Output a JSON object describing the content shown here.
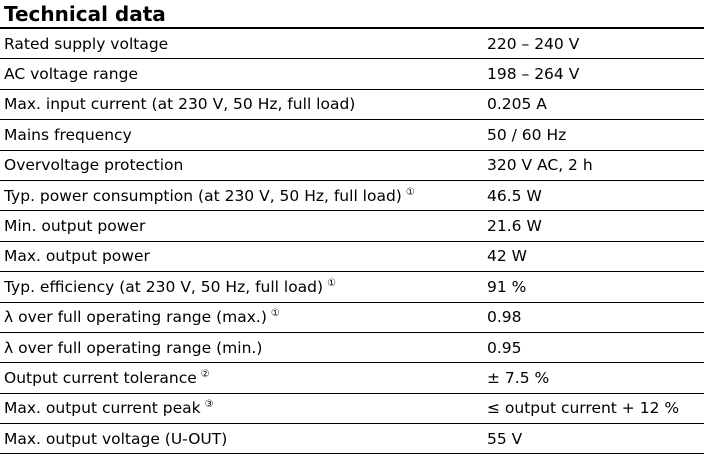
{
  "title": "Technical data",
  "rows": [
    {
      "label": "Rated supply voltage",
      "note": "",
      "value": "220 – 240 V"
    },
    {
      "label": "AC voltage range",
      "note": "",
      "value": "198 – 264 V"
    },
    {
      "label": "Max. input current (at 230 V, 50 Hz, full load)",
      "note": "",
      "value": "0.205 A"
    },
    {
      "label": "Mains frequency",
      "note": "",
      "value": "50 / 60 Hz"
    },
    {
      "label": "Overvoltage protection",
      "note": "",
      "value": "320 V AC, 2 h"
    },
    {
      "label": "Typ. power consumption (at 230 V, 50 Hz, full load)",
      "note": "①",
      "value": "46.5 W"
    },
    {
      "label": "Min. output power",
      "note": "",
      "value": "21.6 W"
    },
    {
      "label": "Max. output power",
      "note": "",
      "value": "42 W"
    },
    {
      "label": "Typ. efficiency (at 230 V, 50 Hz, full load)",
      "note": "①",
      "value": "91 %"
    },
    {
      "label": "λ over full operating range (max.)",
      "note": "①",
      "value": "0.98"
    },
    {
      "label": "λ over full operating range (min.)",
      "note": "",
      "value": "0.95"
    },
    {
      "label": "Output current tolerance",
      "note": "②",
      "value": "± 7.5 %"
    },
    {
      "label": "Max. output current peak",
      "note": "③",
      "value": "≤ output current + 12 %"
    },
    {
      "label": "Max. output voltage (U-OUT)",
      "note": "",
      "value": "55 V"
    }
  ]
}
